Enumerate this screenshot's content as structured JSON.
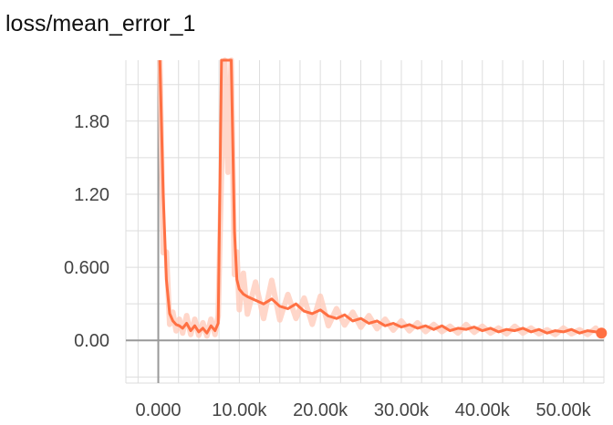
{
  "header": {
    "title": "loss/mean_error_1"
  },
  "chart_data": {
    "type": "line",
    "title": "loss/mean_error_1",
    "xlabel": "",
    "ylabel": "",
    "xlim": [
      -4000,
      55000
    ],
    "ylim": [
      -0.35,
      2.3
    ],
    "grid": true,
    "y_ticks": [
      {
        "value": 0.0,
        "label": "0.00"
      },
      {
        "value": 0.6,
        "label": "0.600"
      },
      {
        "value": 1.2,
        "label": "1.20"
      },
      {
        "value": 1.8,
        "label": "1.80"
      }
    ],
    "x_ticks": [
      {
        "value": 0,
        "label": "0.000"
      },
      {
        "value": 10000,
        "label": "10.00k"
      },
      {
        "value": 20000,
        "label": "20.00k"
      },
      {
        "value": 30000,
        "label": "30.00k"
      },
      {
        "value": 40000,
        "label": "40.00k"
      },
      {
        "value": 50000,
        "label": "50.00k"
      }
    ],
    "colors": {
      "line": "#ff7043",
      "raw": "#ffccbc",
      "axis": "#999999",
      "grid": "#dddddd"
    },
    "series": [
      {
        "x": [
          200,
          600,
          1000,
          1400,
          1800,
          2200,
          2600,
          3000,
          3500,
          4000,
          4500,
          5000,
          5500,
          6000,
          6500,
          7000,
          7400,
          7800,
          8200,
          8600,
          9000,
          9400,
          9700,
          10000,
          10500,
          11000,
          12000,
          13000,
          14000,
          15000,
          16000,
          17000,
          18000,
          19000,
          20000,
          21000,
          22000,
          23000,
          24000,
          25000,
          26000,
          27000,
          28000,
          29000,
          30000,
          31000,
          32000,
          33000,
          34000,
          35000,
          36000,
          37000,
          38000,
          39000,
          40000,
          41000,
          42000,
          43000,
          44000,
          45000,
          46000,
          47000,
          48000,
          49000,
          50000,
          51000,
          52000,
          53000,
          54000,
          54700
        ],
        "y": [
          2.3,
          1.2,
          0.5,
          0.22,
          0.16,
          0.13,
          0.12,
          0.1,
          0.14,
          0.08,
          0.12,
          0.07,
          0.1,
          0.06,
          0.12,
          0.08,
          0.14,
          2.3,
          2.3,
          2.3,
          2.3,
          0.9,
          0.5,
          0.42,
          0.38,
          0.36,
          0.33,
          0.3,
          0.34,
          0.28,
          0.26,
          0.3,
          0.24,
          0.22,
          0.25,
          0.2,
          0.18,
          0.21,
          0.16,
          0.18,
          0.14,
          0.16,
          0.12,
          0.14,
          0.11,
          0.13,
          0.1,
          0.12,
          0.09,
          0.12,
          0.08,
          0.1,
          0.09,
          0.11,
          0.08,
          0.1,
          0.07,
          0.09,
          0.08,
          0.1,
          0.07,
          0.09,
          0.06,
          0.08,
          0.07,
          0.09,
          0.06,
          0.08,
          0.07,
          0.06
        ]
      }
    ]
  }
}
